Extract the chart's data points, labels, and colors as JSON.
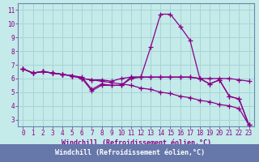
{
  "xlabel": "Windchill (Refroidissement éolien,°C)",
  "bg_color": "#c5eaea",
  "grid_color": "#a8d4d4",
  "line_color": "#880088",
  "spine_color": "#6688aa",
  "xlim": [
    -0.5,
    23.5
  ],
  "ylim": [
    2.5,
    11.5
  ],
  "xticks": [
    0,
    1,
    2,
    3,
    4,
    5,
    6,
    7,
    8,
    9,
    10,
    11,
    12,
    13,
    14,
    15,
    16,
    17,
    18,
    19,
    20,
    21,
    22,
    23
  ],
  "yticks": [
    3,
    4,
    5,
    6,
    7,
    8,
    9,
    10,
    11
  ],
  "lines": [
    {
      "x": [
        0,
        1,
        2,
        3,
        4,
        5,
        6,
        7,
        8,
        9,
        10,
        11,
        12,
        13,
        14,
        15,
        16,
        17,
        18,
        19,
        20,
        21,
        22,
        23
      ],
      "y": [
        6.7,
        6.4,
        6.5,
        6.4,
        6.3,
        6.2,
        6.0,
        5.9,
        5.8,
        5.7,
        5.6,
        5.5,
        5.3,
        5.2,
        5.0,
        4.9,
        4.7,
        4.6,
        4.4,
        4.3,
        4.1,
        4.0,
        3.8,
        2.6
      ]
    },
    {
      "x": [
        0,
        1,
        2,
        3,
        4,
        5,
        6,
        7,
        8,
        9,
        10,
        11,
        12,
        13,
        14,
        15,
        16,
        17,
        18,
        19,
        20,
        21,
        22,
        23
      ],
      "y": [
        6.7,
        6.4,
        6.5,
        6.4,
        6.3,
        6.2,
        6.0,
        5.9,
        5.9,
        5.8,
        6.0,
        6.1,
        6.1,
        6.1,
        6.1,
        6.1,
        6.1,
        6.1,
        6.0,
        6.0,
        6.0,
        6.0,
        5.9,
        5.8
      ]
    },
    {
      "x": [
        0,
        1,
        2,
        3,
        4,
        5,
        6,
        7,
        8,
        9,
        10,
        11,
        12,
        13,
        14,
        15,
        16,
        17,
        18,
        19,
        20,
        21,
        22,
        23
      ],
      "y": [
        6.7,
        6.4,
        6.5,
        6.4,
        6.3,
        6.2,
        6.0,
        5.1,
        5.5,
        5.5,
        5.5,
        6.0,
        6.1,
        6.1,
        6.1,
        6.1,
        6.1,
        6.1,
        6.0,
        5.6,
        5.9,
        4.7,
        4.5,
        2.6
      ]
    },
    {
      "x": [
        0,
        1,
        2,
        3,
        4,
        5,
        6,
        7,
        8,
        9,
        10,
        11,
        12,
        13,
        14,
        15,
        16,
        17,
        18,
        19,
        20,
        21,
        22,
        23
      ],
      "y": [
        6.7,
        6.4,
        6.5,
        6.4,
        6.3,
        6.2,
        6.1,
        5.2,
        5.6,
        5.5,
        5.5,
        6.1,
        6.1,
        8.3,
        10.7,
        10.7,
        9.8,
        8.8,
        6.0,
        5.6,
        5.9,
        4.7,
        4.5,
        2.6
      ]
    }
  ]
}
